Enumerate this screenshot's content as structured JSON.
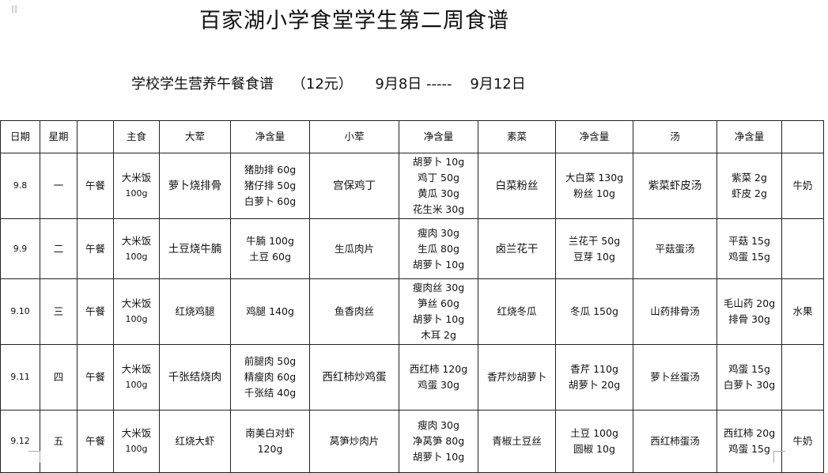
{
  "title": "百家湖小学食堂学生第二周食谱",
  "subtitle": "学校学生营养午餐食谱    （12元）     9月8日 -----    9月12日",
  "headers": [
    "日期",
    "星期",
    "",
    "主食",
    "大荤",
    "净含量",
    "小荤",
    "净含量",
    "素菜",
    "净含量",
    "汤",
    "净含量",
    ""
  ],
  "rows": [
    {
      "date": "9.8",
      "weekday": "一",
      "meal": "午餐",
      "staple": [
        "大米饭",
        "100g"
      ],
      "big_meat": "萝卜烧排骨",
      "big_meat_net": [
        "猪肋排 60g",
        "猪仔排 50g",
        "白萝卜 60g"
      ],
      "small_meat": "宫保鸡丁",
      "small_meat_net": [
        "胡萝卜 10g",
        "鸡丁 50g",
        "黄瓜 30g",
        "花生米 30g"
      ],
      "veg": "白菜粉丝",
      "veg_net": [
        "大白菜 130g",
        "粉丝 10g"
      ],
      "soup": "紫菜虾皮汤",
      "soup_net": [
        "紫菜 2g",
        "虾皮 2g"
      ],
      "extra": "牛奶"
    },
    {
      "date": "9.9",
      "weekday": "二",
      "meal": "午餐",
      "staple": [
        "大米饭",
        "100g"
      ],
      "big_meat": "土豆烧牛腩",
      "big_meat_net": [
        "牛腩 100g",
        "土豆 60g"
      ],
      "small_meat": "生瓜肉片",
      "small_meat_net": [
        "瘦肉 30g",
        "生瓜 80g",
        "胡萝卜 10g"
      ],
      "veg": "卤兰花干",
      "veg_net": [
        "兰花干 50g",
        "豆芽 10g"
      ],
      "soup": "平菇蛋汤",
      "soup_net": [
        "平菇 15g",
        "鸡蛋 15g"
      ],
      "extra": ""
    },
    {
      "date": "9.10",
      "weekday": "三",
      "meal": "午餐",
      "staple": [
        "大米饭",
        "100g"
      ],
      "big_meat": "红烧鸡腿",
      "big_meat_net": [
        "鸡腿 140g"
      ],
      "small_meat": "鱼香肉丝",
      "small_meat_net": [
        "瘦肉丝 30g",
        "笋丝 60g",
        "胡萝卜 10g",
        "木耳 2g"
      ],
      "veg": "红烧冬瓜",
      "veg_net": [
        "冬瓜 150g"
      ],
      "soup": "山药排骨汤",
      "soup_net": [
        "毛山药 20g",
        "排骨 30g"
      ],
      "extra": "水果"
    },
    {
      "date": "9.11",
      "weekday": "四",
      "meal": "午餐",
      "staple": [
        "大米饭",
        "100g"
      ],
      "big_meat": "千张结烧肉",
      "big_meat_net": [
        "前腿肉 50g",
        "精瘦肉 60g",
        "千张结 40g"
      ],
      "small_meat": "西红柿炒鸡蛋",
      "small_meat_net": [
        "西红柿 120g",
        "鸡蛋 30g"
      ],
      "veg": "香芹炒胡萝卜",
      "veg_net": [
        "香芹 110g",
        "胡萝卜 20g"
      ],
      "soup": "萝卜丝蛋汤",
      "soup_net": [
        "鸡蛋 15g",
        "白萝卜 30g"
      ],
      "extra": ""
    },
    {
      "date": "9.12",
      "weekday": "五",
      "meal": "午餐",
      "staple": [
        "大米饭",
        "100g"
      ],
      "big_meat": "红烧大虾",
      "big_meat_net": [
        "南美白对虾",
        "120g"
      ],
      "small_meat": "莴笋炒肉片",
      "small_meat_net": [
        "瘦肉 30g",
        "净莴笋 80g",
        "胡萝卜 10g"
      ],
      "veg": "青椒土豆丝",
      "veg_net": [
        "土豆 100g",
        "圆椒 10g"
      ],
      "soup": "西红柿蛋汤",
      "soup_net": [
        "西红柿 20g",
        "鸡蛋 15g"
      ],
      "extra": "牛奶"
    }
  ]
}
